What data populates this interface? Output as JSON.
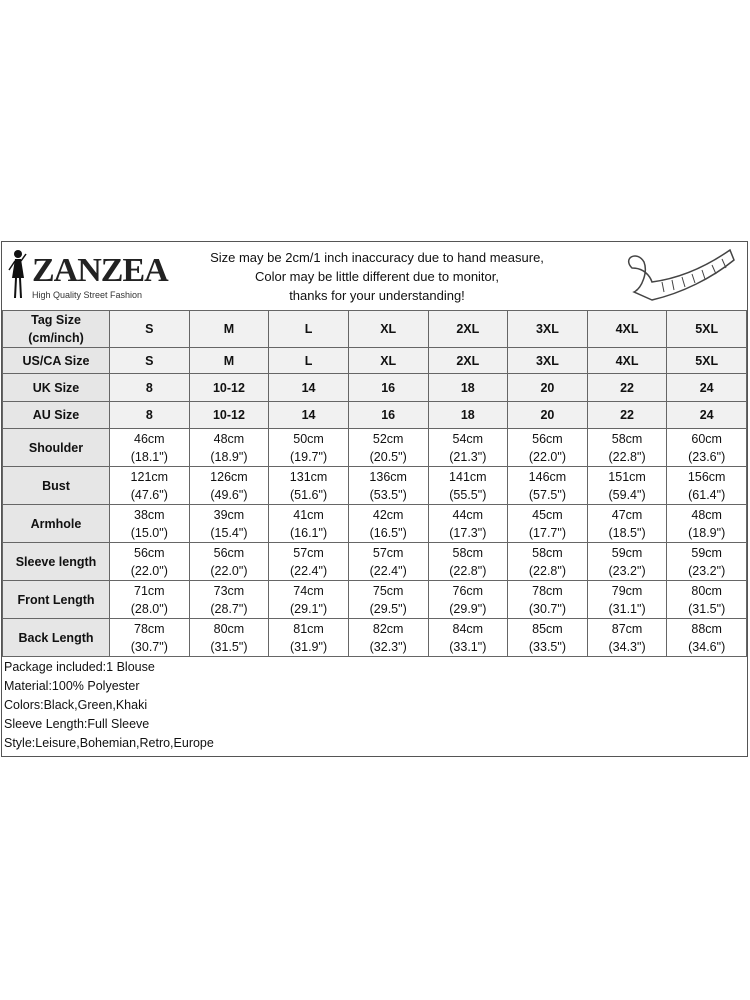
{
  "header": {
    "brand": "ZANZEA",
    "tagline": "High Quality Street Fashion",
    "notice": [
      "Size may be 2cm/1 inch inaccuracy due to hand measure,",
      "Color may be little different due to monitor,",
      "thanks for your understanding!"
    ],
    "icon": "measuring-tape-icon"
  },
  "table": {
    "size_rows": [
      {
        "label": "Tag Size (cm/inch)",
        "values": [
          "S",
          "M",
          "L",
          "XL",
          "2XL",
          "3XL",
          "4XL",
          "5XL"
        ]
      },
      {
        "label": "US/CA Size",
        "values": [
          "S",
          "M",
          "L",
          "XL",
          "2XL",
          "3XL",
          "4XL",
          "5XL"
        ]
      },
      {
        "label": "UK Size",
        "values": [
          "8",
          "10-12",
          "14",
          "16",
          "18",
          "20",
          "22",
          "24"
        ]
      },
      {
        "label": "AU Size",
        "values": [
          "8",
          "10-12",
          "14",
          "16",
          "18",
          "20",
          "22",
          "24"
        ]
      }
    ],
    "measure_rows": [
      {
        "label": "Shoulder",
        "cm": [
          "46cm",
          "48cm",
          "50cm",
          "52cm",
          "54cm",
          "56cm",
          "58cm",
          "60cm"
        ],
        "inch": [
          "(18.1\")",
          "(18.9\")",
          "(19.7\")",
          "(20.5\")",
          "(21.3\")",
          "(22.0\")",
          "(22.8\")",
          "(23.6\")"
        ]
      },
      {
        "label": "Bust",
        "cm": [
          "121cm",
          "126cm",
          "131cm",
          "136cm",
          "141cm",
          "146cm",
          "151cm",
          "156cm"
        ],
        "inch": [
          "(47.6\")",
          "(49.6\")",
          "(51.6\")",
          "(53.5\")",
          "(55.5\")",
          "(57.5\")",
          "(59.4\")",
          "(61.4\")"
        ]
      },
      {
        "label": "Armhole",
        "cm": [
          "38cm",
          "39cm",
          "41cm",
          "42cm",
          "44cm",
          "45cm",
          "47cm",
          "48cm"
        ],
        "inch": [
          "(15.0\")",
          "(15.4\")",
          "(16.1\")",
          "(16.5\")",
          "(17.3\")",
          "(17.7\")",
          "(18.5\")",
          "(18.9\")"
        ]
      },
      {
        "label": "Sleeve length",
        "cm": [
          "56cm",
          "56cm",
          "57cm",
          "57cm",
          "58cm",
          "58cm",
          "59cm",
          "59cm"
        ],
        "inch": [
          "(22.0\")",
          "(22.0\")",
          "(22.4\")",
          "(22.4\")",
          "(22.8\")",
          "(22.8\")",
          "(23.2\")",
          "(23.2\")"
        ]
      },
      {
        "label": "Front Length",
        "cm": [
          "71cm",
          "73cm",
          "74cm",
          "75cm",
          "76cm",
          "78cm",
          "79cm",
          "80cm"
        ],
        "inch": [
          "(28.0\")",
          "(28.7\")",
          "(29.1\")",
          "(29.5\")",
          "(29.9\")",
          "(30.7\")",
          "(31.1\")",
          "(31.5\")"
        ]
      },
      {
        "label": "Back Length",
        "cm": [
          "78cm",
          "80cm",
          "81cm",
          "82cm",
          "84cm",
          "85cm",
          "87cm",
          "88cm"
        ],
        "inch": [
          "(30.7\")",
          "(31.5\")",
          "(31.9\")",
          "(32.3\")",
          "(33.1\")",
          "(33.5\")",
          "(34.3\")",
          "(34.6\")"
        ]
      }
    ]
  },
  "notes": [
    "Package included:1 Blouse",
    "Material:100% Polyester",
    "Colors:Black,Green,Khaki",
    "Sleeve Length:Full Sleeve",
    "Style:Leisure,Bohemian,Retro,Europe"
  ]
}
